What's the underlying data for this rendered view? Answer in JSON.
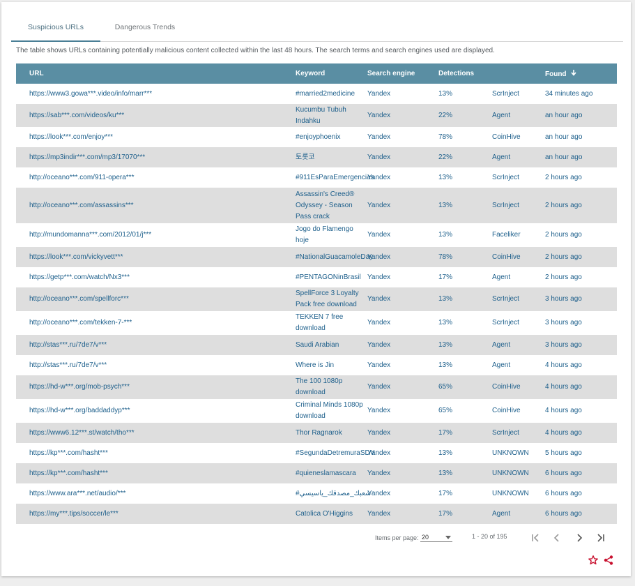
{
  "tabs": [
    {
      "label": "Suspicious URLs",
      "active": true
    },
    {
      "label": "Dangerous Trends",
      "active": false
    }
  ],
  "description": "The table shows URLs containing potentially malicious content collected within the last 48 hours. The search terms and search engines used are displayed.",
  "columns": {
    "url": "URL",
    "keyword": "Keyword",
    "engine": "Search engine",
    "detections": "Detections",
    "threat": "",
    "found": "Found"
  },
  "rows": [
    {
      "url": "https://www3.gowa***.video/info/marr***",
      "keyword": "#married2medicine",
      "engine": "Yandex",
      "detections": "13%",
      "threat": "ScrInject",
      "found": "34 minutes ago"
    },
    {
      "url": "https://sab***.com/videos/ku***",
      "keyword": "Kucumbu Tubuh Indahku",
      "engine": "Yandex",
      "detections": "22%",
      "threat": "Agent",
      "found": "an hour ago"
    },
    {
      "url": "https://look***.com/enjoy***",
      "keyword": "#enjoyphoenix",
      "engine": "Yandex",
      "detections": "78%",
      "threat": "CoinHive",
      "found": "an hour ago"
    },
    {
      "url": "https://mp3indir***.com/mp3/17070***",
      "keyword": "토롯코",
      "engine": "Yandex",
      "detections": "22%",
      "threat": "Agent",
      "found": "an hour ago"
    },
    {
      "url": "http://oceano***.com/911-opera***",
      "keyword": "#911EsParaEmergencias",
      "engine": "Yandex",
      "detections": "13%",
      "threat": "ScrInject",
      "found": "2 hours ago"
    },
    {
      "url": "http://oceano***.com/assassins***",
      "keyword": "Assassin's Creed® Odyssey - Season Pass crack",
      "engine": "Yandex",
      "detections": "13%",
      "threat": "ScrInject",
      "found": "2 hours ago"
    },
    {
      "url": "http://mundomanna***.com/2012/01/j***",
      "keyword": "Jogo do Flamengo hoje",
      "engine": "Yandex",
      "detections": "13%",
      "threat": "Faceliker",
      "found": "2 hours ago"
    },
    {
      "url": "https://look***.com/vickyvett***",
      "keyword": "#NationalGuacamoleDay",
      "engine": "Yandex",
      "detections": "78%",
      "threat": "CoinHive",
      "found": "2 hours ago"
    },
    {
      "url": "https://getp***.com/watch/Nx3***",
      "keyword": "#PENTAGONinBrasil",
      "engine": "Yandex",
      "detections": "17%",
      "threat": "Agent",
      "found": "2 hours ago"
    },
    {
      "url": "http://oceano***.com/spellforc***",
      "keyword": "SpellForce 3 Loyalty Pack free download",
      "engine": "Yandex",
      "detections": "13%",
      "threat": "ScrInject",
      "found": "3 hours ago"
    },
    {
      "url": "http://oceano***.com/tekken-7-***",
      "keyword": "TEKKEN 7 free download",
      "engine": "Yandex",
      "detections": "13%",
      "threat": "ScrInject",
      "found": "3 hours ago"
    },
    {
      "url": "http://stas***.ru/7de7/v***",
      "keyword": "Saudi Arabian",
      "engine": "Yandex",
      "detections": "13%",
      "threat": "Agent",
      "found": "3 hours ago"
    },
    {
      "url": "http://stas***.ru/7de7/v***",
      "keyword": "Where is Jin",
      "engine": "Yandex",
      "detections": "13%",
      "threat": "Agent",
      "found": "4 hours ago"
    },
    {
      "url": "https://hd-w***.org/mob-psych***",
      "keyword": "The 100 1080p download",
      "engine": "Yandex",
      "detections": "65%",
      "threat": "CoinHive",
      "found": "4 hours ago"
    },
    {
      "url": "https://hd-w***.org/baddaddyp***",
      "keyword": "Criminal Minds 1080p download",
      "engine": "Yandex",
      "detections": "65%",
      "threat": "CoinHive",
      "found": "4 hours ago"
    },
    {
      "url": "https://www6.12***.st/watch/tho***",
      "keyword": "Thor Ragnarok",
      "engine": "Yandex",
      "detections": "17%",
      "threat": "ScrInject",
      "found": "4 hours ago"
    },
    {
      "url": "https://kp***.com/hasht***",
      "keyword": "#SegundaDetremuraSDV",
      "engine": "Yandex",
      "detections": "13%",
      "threat": "UNKNOWN",
      "found": "5 hours ago"
    },
    {
      "url": "https://kp***.com/hasht***",
      "keyword": "#quieneslamascara",
      "engine": "Yandex",
      "detections": "13%",
      "threat": "UNKNOWN",
      "found": "6 hours ago"
    },
    {
      "url": "https://www.ara***.net/audio/***",
      "keyword": "#شعبك_مصدقك_ياسيسي",
      "engine": "Yandex",
      "detections": "17%",
      "threat": "UNKNOWN",
      "found": "6 hours ago"
    },
    {
      "url": "https://my***.tips/soccer/le***",
      "keyword": "Catolica O'Higgins",
      "engine": "Yandex",
      "detections": "17%",
      "threat": "Agent",
      "found": "6 hours ago"
    }
  ],
  "paginator": {
    "items_per_page_label": "Items per page:",
    "page_size": "20",
    "range_label": "1 - 20 of 195"
  },
  "icons": {
    "sort": "arrow-down-icon",
    "first": "first-page-icon",
    "prev": "chevron-left-icon",
    "next": "chevron-right-icon",
    "last": "last-page-icon",
    "favorite": "star-icon",
    "share": "share-icon"
  },
  "colors": {
    "header_bg": "#5a8ea3",
    "row_alt": "#dedede",
    "link_text": "#1d5f8b",
    "accent_red": "#c8102e"
  }
}
